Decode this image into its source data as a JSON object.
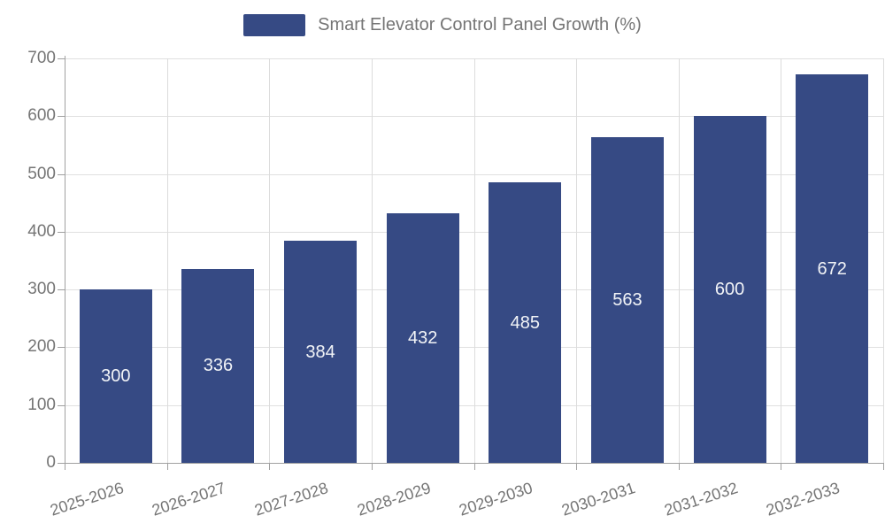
{
  "legend": {
    "label": "Smart Elevator Control Panel Growth (%)"
  },
  "chart_data": {
    "type": "bar",
    "title": "Smart Elevator Control Panel Growth (%)",
    "categories": [
      "2025-2026",
      "2026-2027",
      "2027-2028",
      "2028-2029",
      "2029-2030",
      "2030-2031",
      "2031-2032",
      "2032-2033"
    ],
    "values": [
      300,
      336,
      384,
      432,
      485,
      563,
      600,
      672
    ],
    "value_labels": [
      "300",
      "336",
      "384",
      "432",
      "485",
      "563",
      "600",
      "672"
    ],
    "xlabel": "",
    "ylabel": "",
    "ylim": [
      0,
      700
    ],
    "y_ticks": [
      0,
      100,
      200,
      300,
      400,
      500,
      600,
      700
    ],
    "grid": true,
    "legend_position": "top",
    "bar_color": "#364a84",
    "bar_label_color": "#f2f4f7",
    "axis_color": "#a0a0a0",
    "grid_color": "#e0e0e0",
    "text_color": "#757575"
  }
}
